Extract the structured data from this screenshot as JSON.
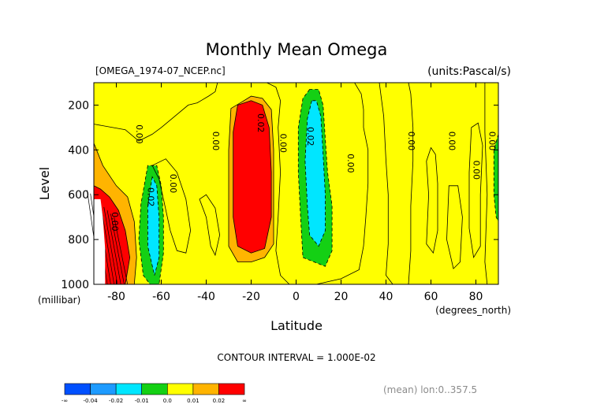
{
  "chart_data": {
    "type": "heatmap",
    "title": "Monthly Mean Omega",
    "file_label": "[OMEGA_1974-07_NCEP.nc]",
    "units_label": "(units:Pascal/s)",
    "xlabel": "Latitude",
    "x_unit_label": "(degrees_north)",
    "ylabel": "Level",
    "y_unit_label": "(millibar)",
    "xlim": [
      -90,
      90
    ],
    "ylim": [
      1000,
      100
    ],
    "x_ticks": [
      -80,
      -60,
      -40,
      -20,
      0,
      20,
      40,
      60,
      80
    ],
    "y_ticks": [
      200,
      400,
      600,
      800,
      1000
    ],
    "x_tick_labels": [
      "-80",
      "-60",
      "-40",
      "-20",
      "0",
      "20",
      "40",
      "60",
      "80"
    ],
    "y_tick_labels": [
      "200",
      "400",
      "600",
      "800",
      "1000"
    ],
    "contour_interval_text": "CONTOUR INTERVAL = 1.000E-02",
    "mean_note": "(mean) lon:0..357.5",
    "levels": [
      -0.04,
      -0.02,
      -0.01,
      0.0,
      0.01,
      0.02
    ],
    "colorbar": {
      "labels": [
        "-∞",
        "-0.04",
        "-0.02",
        "-0.01",
        "0.0",
        "0.01",
        "0.02",
        "∞"
      ],
      "colors": [
        "#0050ff",
        "#1e9bff",
        "#00e6ff",
        "#14d014",
        "#ffff00",
        "#ffb400",
        "#ff0000"
      ]
    },
    "contour_labels": [
      {
        "text": "0.00",
        "x": -71,
        "y": 330
      },
      {
        "text": "0.00",
        "x": -82,
        "y": 720
      },
      {
        "text": "0.02",
        "x": -66,
        "y": 610
      },
      {
        "text": "0.00",
        "x": -56,
        "y": 550
      },
      {
        "text": "0.00",
        "x": -37,
        "y": 360
      },
      {
        "text": "0.02",
        "x": -17,
        "y": 280
      },
      {
        "text": "0.00",
        "x": -7,
        "y": 370
      },
      {
        "text": "0.02",
        "x": 5,
        "y": 340
      },
      {
        "text": "0.00",
        "x": 23,
        "y": 460
      },
      {
        "text": "0.00",
        "x": 50,
        "y": 360
      },
      {
        "text": "0.00",
        "x": 68,
        "y": 360
      },
      {
        "text": "0.00",
        "x": 79,
        "y": 490
      },
      {
        "text": "0.00",
        "x": 86,
        "y": 360
      }
    ],
    "regions": [
      {
        "level": 0.0,
        "polygon": [
          [
            -90,
            100
          ],
          [
            -90,
            285
          ],
          [
            -76,
            310
          ],
          [
            -70,
            360
          ],
          [
            -64,
            330
          ],
          [
            -60,
            300
          ],
          [
            -54,
            250
          ],
          [
            -48,
            200
          ],
          [
            -44,
            190
          ],
          [
            -39,
            160
          ],
          [
            -36,
            140
          ],
          [
            -35,
            100
          ]
        ]
      },
      {
        "level": 0.0,
        "polygon": [
          [
            -64,
            470
          ],
          [
            -61,
            530
          ],
          [
            -59,
            620
          ],
          [
            -56,
            760
          ],
          [
            -53,
            850
          ],
          [
            -49,
            860
          ],
          [
            -47,
            760
          ],
          [
            -49,
            620
          ],
          [
            -53,
            500
          ],
          [
            -58,
            440
          ]
        ]
      },
      {
        "level": 0.0,
        "polygon": [
          [
            -43,
            620
          ],
          [
            -40,
            700
          ],
          [
            -38,
            830
          ],
          [
            -36,
            870
          ],
          [
            -34,
            780
          ],
          [
            -36,
            660
          ],
          [
            -40,
            600
          ]
        ]
      },
      {
        "level": 0.0,
        "polygon": [
          [
            -13,
            100
          ],
          [
            -9,
            120
          ],
          [
            -7,
            180
          ],
          [
            -8,
            300
          ],
          [
            -7,
            500
          ],
          [
            -8,
            700
          ],
          [
            -9,
            850
          ],
          [
            -7,
            960
          ],
          [
            -3,
            1000
          ],
          [
            9,
            1000
          ],
          [
            20,
            975
          ],
          [
            28,
            935
          ],
          [
            30,
            830
          ],
          [
            31,
            700
          ],
          [
            32,
            550
          ],
          [
            32,
            400
          ],
          [
            30,
            300
          ],
          [
            30,
            220
          ],
          [
            29,
            150
          ],
          [
            26,
            100
          ]
        ]
      },
      {
        "level": 0.0,
        "polygon": [
          [
            37,
            100
          ],
          [
            39,
            250
          ],
          [
            40,
            450
          ],
          [
            41,
            600
          ],
          [
            41,
            820
          ],
          [
            40,
            960
          ],
          [
            43,
            1000
          ],
          [
            50,
            1000
          ],
          [
            51,
            850
          ],
          [
            51,
            650
          ],
          [
            52,
            450
          ],
          [
            52,
            300
          ],
          [
            51,
            150
          ],
          [
            50,
            100
          ]
        ]
      },
      {
        "level": 0.0,
        "polygon": [
          [
            58,
            450
          ],
          [
            59,
            600
          ],
          [
            58,
            820
          ],
          [
            61,
            860
          ],
          [
            63,
            760
          ],
          [
            63,
            550
          ],
          [
            62,
            420
          ],
          [
            60,
            390
          ]
        ]
      },
      {
        "level": 0.0,
        "polygon": [
          [
            68,
            560
          ],
          [
            67,
            800
          ],
          [
            70,
            930
          ],
          [
            73,
            900
          ],
          [
            74,
            700
          ],
          [
            72,
            560
          ]
        ]
      },
      {
        "level": 0.0,
        "polygon": [
          [
            78,
            300
          ],
          [
            77,
            500
          ],
          [
            77,
            750
          ],
          [
            79,
            880
          ],
          [
            82,
            830
          ],
          [
            82,
            600
          ],
          [
            83,
            380
          ],
          [
            81,
            280
          ]
        ]
      },
      {
        "level": 0.0,
        "polygon": [
          [
            84,
            100
          ],
          [
            84,
            320
          ],
          [
            85,
            600
          ],
          [
            84,
            900
          ],
          [
            85,
            1000
          ],
          [
            90,
            1000
          ],
          [
            90,
            100
          ]
        ]
      },
      {
        "level": -0.01,
        "polygon": [
          [
            -66,
            470
          ],
          [
            -69,
            640
          ],
          [
            -70,
            800
          ],
          [
            -68,
            960
          ],
          [
            -65,
            1000
          ],
          [
            -61,
            1000
          ],
          [
            -59,
            860
          ],
          [
            -59,
            700
          ],
          [
            -60,
            560
          ],
          [
            -62,
            470
          ]
        ]
      },
      {
        "level": -0.01,
        "polygon": [
          [
            6,
            130
          ],
          [
            3,
            170
          ],
          [
            1,
            300
          ],
          [
            1,
            500
          ],
          [
            2,
            700
          ],
          [
            3,
            880
          ],
          [
            8,
            900
          ],
          [
            13,
            920
          ],
          [
            16,
            850
          ],
          [
            16,
            650
          ],
          [
            14,
            500
          ],
          [
            13,
            350
          ],
          [
            12,
            200
          ],
          [
            10,
            130
          ]
        ]
      },
      {
        "level": -0.01,
        "polygon": [
          [
            90,
            330
          ],
          [
            88,
            400
          ],
          [
            88,
            600
          ],
          [
            89,
            700
          ],
          [
            90,
            720
          ]
        ]
      },
      {
        "level": -0.02,
        "polygon": [
          [
            -64,
            520
          ],
          [
            -66,
            650
          ],
          [
            -66,
            830
          ],
          [
            -63,
            960
          ],
          [
            -61,
            880
          ],
          [
            -61,
            700
          ],
          [
            -62,
            560
          ]
        ]
      },
      {
        "level": -0.02,
        "polygon": [
          [
            7,
            180
          ],
          [
            5,
            260
          ],
          [
            4,
            450
          ],
          [
            5,
            650
          ],
          [
            6,
            780
          ],
          [
            10,
            830
          ],
          [
            13,
            760
          ],
          [
            13,
            600
          ],
          [
            12,
            420
          ],
          [
            11,
            250
          ],
          [
            9,
            180
          ]
        ]
      },
      {
        "level": 0.01,
        "polygon": [
          [
            -90,
            370
          ],
          [
            -90,
            1000
          ],
          [
            -72,
            1000
          ],
          [
            -71,
            880
          ],
          [
            -72,
            720
          ],
          [
            -75,
            610
          ],
          [
            -80,
            560
          ],
          [
            -86,
            470
          ]
        ]
      },
      {
        "level": 0.01,
        "polygon": [
          [
            -20,
            160
          ],
          [
            -24,
            185
          ],
          [
            -29,
            215
          ],
          [
            -30,
            400
          ],
          [
            -30,
            640
          ],
          [
            -30,
            830
          ],
          [
            -26,
            900
          ],
          [
            -20,
            900
          ],
          [
            -14,
            880
          ],
          [
            -10,
            820
          ],
          [
            -10,
            600
          ],
          [
            -10,
            400
          ],
          [
            -11,
            220
          ],
          [
            -15,
            170
          ]
        ]
      },
      {
        "level": 0.02,
        "polygon": [
          [
            -90,
            560
          ],
          [
            -90,
            1000
          ],
          [
            -76,
            1000
          ],
          [
            -74,
            880
          ],
          [
            -76,
            760
          ],
          [
            -79,
            670
          ],
          [
            -83,
            610
          ],
          [
            -87,
            575
          ]
        ]
      },
      {
        "level": 0.02,
        "polygon": [
          [
            -20,
            180
          ],
          [
            -26,
            200
          ],
          [
            -28,
            320
          ],
          [
            -28,
            500
          ],
          [
            -28,
            700
          ],
          [
            -26,
            830
          ],
          [
            -20,
            860
          ],
          [
            -14,
            840
          ],
          [
            -11,
            700
          ],
          [
            -11,
            500
          ],
          [
            -12,
            300
          ],
          [
            -15,
            200
          ]
        ]
      }
    ],
    "dense_lines": {
      "from": [
        -90,
        580
      ],
      "to": [
        -78,
        1000
      ],
      "count": 9
    },
    "missing_data_mask": [
      [
        -90,
        620
      ],
      [
        -90,
        1000
      ],
      [
        -85,
        1000
      ],
      [
        -85,
        840
      ],
      [
        -86,
        700
      ],
      [
        -87,
        620
      ]
    ]
  }
}
